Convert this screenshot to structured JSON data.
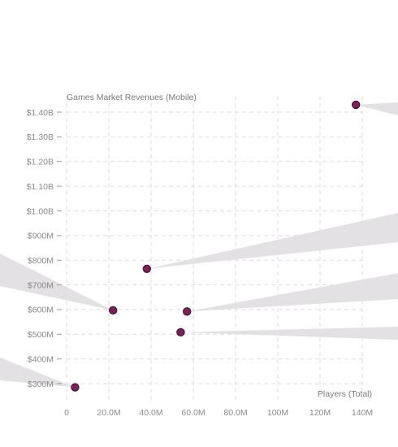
{
  "chart_data": {
    "type": "scatter",
    "ylabel": "Games Market Revenues (Mobile)",
    "xlabel": "Players (Total)",
    "x_ticks": [
      {
        "value": 0,
        "label": "0"
      },
      {
        "value": 20,
        "label": "20.0M"
      },
      {
        "value": 40,
        "label": "40.0M"
      },
      {
        "value": 60,
        "label": "60.0M"
      },
      {
        "value": 80,
        "label": "80.0M"
      },
      {
        "value": 100,
        "label": "100M"
      },
      {
        "value": 120,
        "label": "120M"
      },
      {
        "value": 140,
        "label": "140M"
      }
    ],
    "y_ticks": [
      {
        "value": 300,
        "label": "$300M"
      },
      {
        "value": 400,
        "label": "$400M"
      },
      {
        "value": 500,
        "label": "$500M"
      },
      {
        "value": 600,
        "label": "$600M"
      },
      {
        "value": 700,
        "label": "$700M"
      },
      {
        "value": 800,
        "label": "$800M"
      },
      {
        "value": 900,
        "label": "$900M"
      },
      {
        "value": 1000,
        "label": "$1.00B"
      },
      {
        "value": 1100,
        "label": "$1.10B"
      },
      {
        "value": 1200,
        "label": "$1.20B"
      },
      {
        "value": 1300,
        "label": "$1.30B"
      },
      {
        "value": 1400,
        "label": "$1.40B"
      }
    ],
    "xlim": [
      0,
      140
    ],
    "ylim": [
      300,
      1400
    ],
    "x_unit": "M players",
    "y_unit": "$M",
    "grid": true,
    "point_color": "#7b2157",
    "point_stroke": "#4a1436",
    "callout_color": "#e3e1e3",
    "points": [
      {
        "x": 4,
        "y": 285
      },
      {
        "x": 22,
        "y": 597
      },
      {
        "x": 38,
        "y": 765
      },
      {
        "x": 54,
        "y": 508
      },
      {
        "x": 57,
        "y": 592
      },
      {
        "x": 137,
        "y": 1430
      }
    ]
  }
}
